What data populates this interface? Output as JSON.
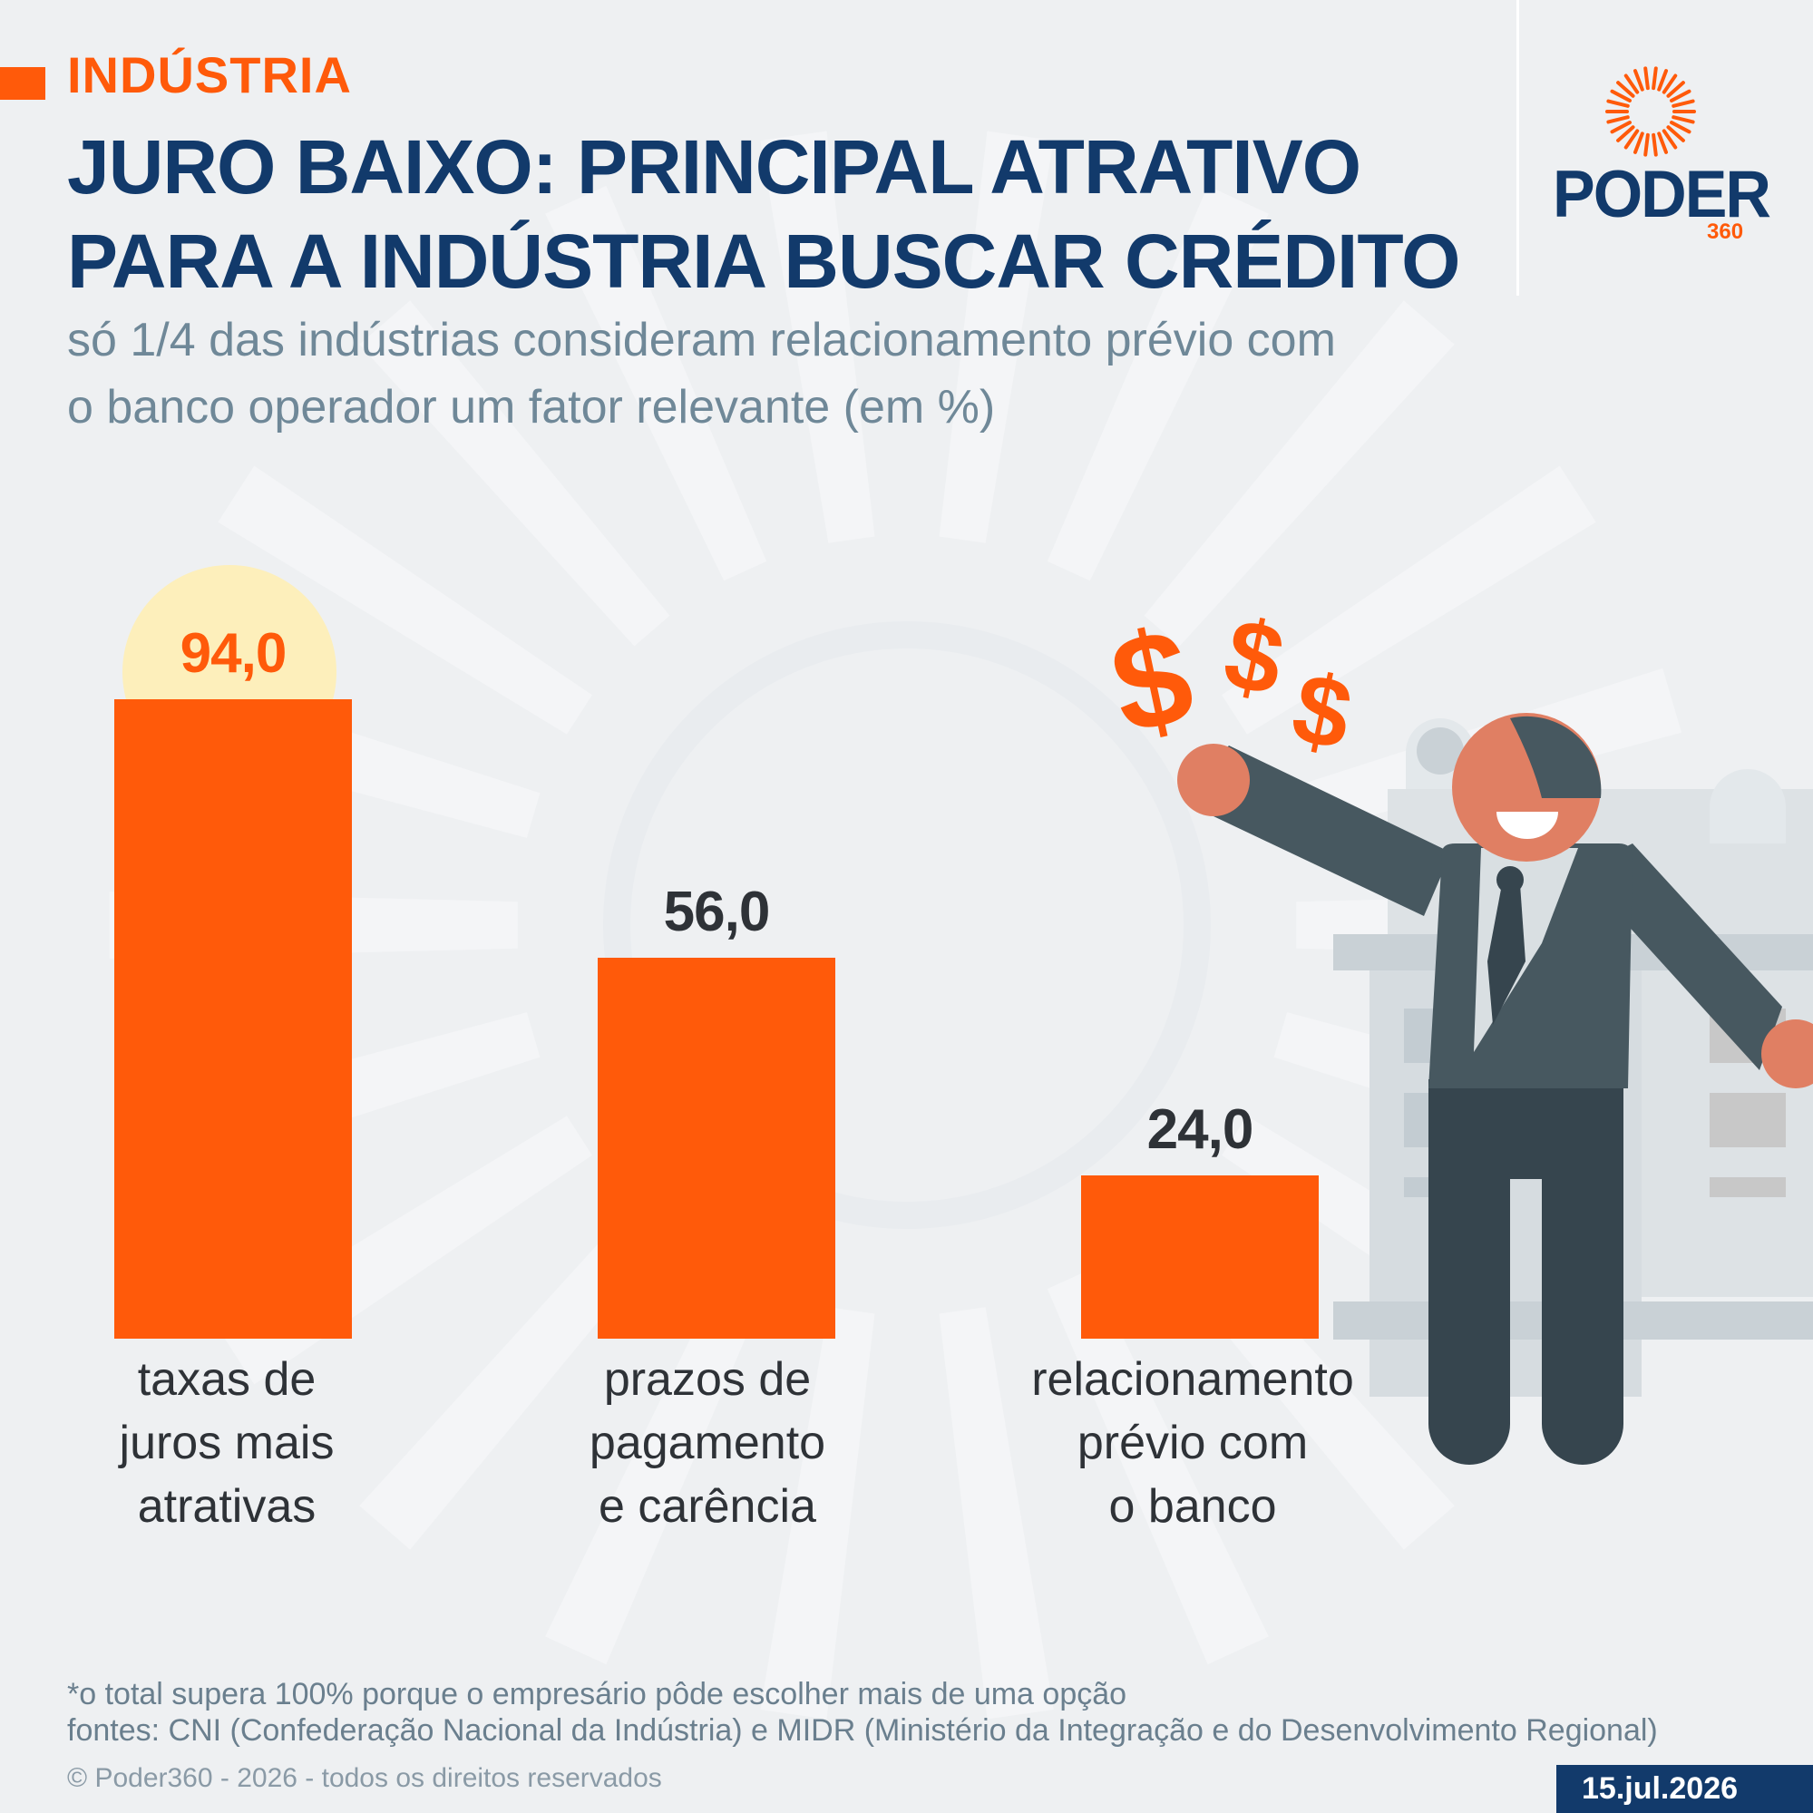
{
  "header": {
    "section": "INDÚSTRIA",
    "title_lines": [
      "JURO BAIXO: PRINCIPAL ATRATIVO",
      "PARA A INDÚSTRIA BUSCAR CRÉDITO"
    ],
    "subtitle_lines": [
      "só 1/4 das indústrias consideram relacionamento prévio com",
      "o banco operador um fator relevante (em %)"
    ]
  },
  "logo": {
    "brand": "PODER",
    "suffix": "360"
  },
  "chart_data": {
    "type": "bar",
    "categories": [
      "taxas de\njuros mais\natrativas",
      "prazos de\npagamento\ne carência",
      "relacionamento\nprévio com\no banco"
    ],
    "values": [
      94.0,
      56.0,
      24.0
    ],
    "value_labels": [
      "94,0",
      "56,0",
      "24,0"
    ],
    "ylim": [
      0,
      100
    ],
    "bar_color": "#ff5a0a",
    "grid": false
  },
  "footer": {
    "note": "*o total supera 100% porque o empresário pôde escolher mais de uma opção",
    "sources": "fontes: CNI (Confederação Nacional da Indústria) e MIDR (Ministério da Integração e do Desenvolvimento Regional)",
    "copyright": "© Poder360 - 2026 - todos os direitos reservados",
    "date": "15.jul.2026"
  },
  "colors": {
    "accent": "#ff5a0a",
    "navy": "#123a6b",
    "background": "#eef0f2"
  },
  "illustration": {
    "icon": "businessman-money-icon",
    "symbols": [
      "$",
      "$",
      "$"
    ]
  }
}
